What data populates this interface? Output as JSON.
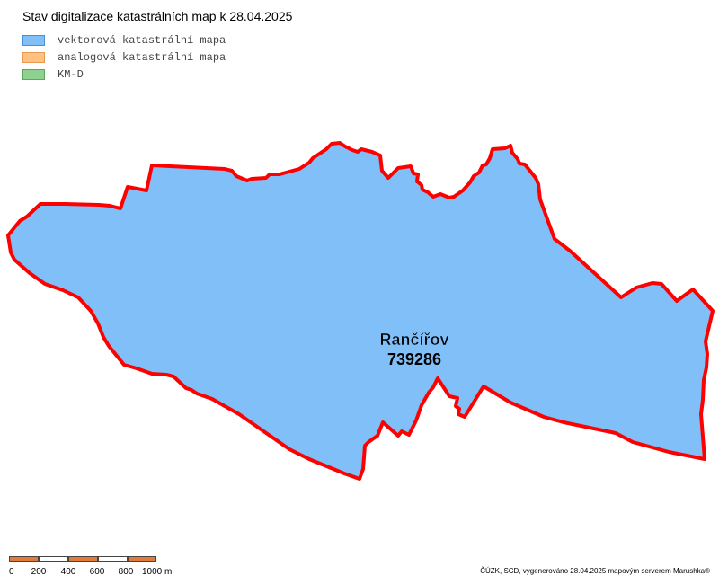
{
  "title": "Stav digitalizace katastrálních map k 28.04.2025",
  "legend": {
    "items": [
      {
        "label": "vektorová katastrální mapa",
        "fill": "#80bff8",
        "border": "#4a90d9"
      },
      {
        "label": "analogová katastrální mapa",
        "fill": "#ffc080",
        "border": "#e89a52"
      },
      {
        "label": "KM-D",
        "fill": "#8fd18f",
        "border": "#5aaa5a"
      }
    ]
  },
  "map": {
    "region_name": "Rančířov",
    "region_code": "739286",
    "fill_color": "#80bff8",
    "boundary_color": "#ff0000"
  },
  "scale": {
    "labels": [
      "0",
      "200",
      "400",
      "600",
      "800",
      "1000 m"
    ],
    "segment_colors": [
      "#e07b39",
      "#ffffff",
      "#e07b39",
      "#ffffff",
      "#e07b39"
    ]
  },
  "credit": "ČÚZK, SCD, vygenerováno 28.04.2025 mapovým serverem Marushka®"
}
